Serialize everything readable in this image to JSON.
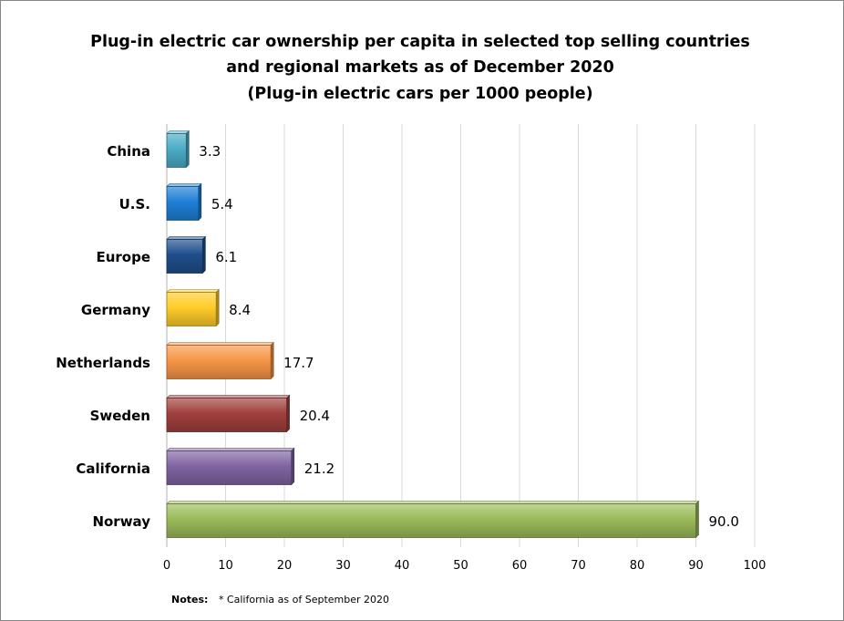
{
  "chart_data": {
    "type": "bar",
    "orientation": "horizontal",
    "title_lines": [
      "Plug-in electric car ownership per capita in selected top selling countries",
      "and regional markets as of December 2020",
      "(Plug-in electric cars per 1000 people)"
    ],
    "categories": [
      "China",
      "U.S.",
      "Europe",
      "Germany",
      "Netherlands",
      "Sweden",
      "California",
      "Norway"
    ],
    "values": [
      3.3,
      5.4,
      6.1,
      8.4,
      17.7,
      20.4,
      21.2,
      90.0
    ],
    "data_labels": [
      "3.3",
      "5.4",
      "6.1",
      "8.4",
      "17.7",
      "20.4",
      "21.2",
      "90.0"
    ],
    "colors": [
      "#4bacc6",
      "#1f7fd6",
      "#1f4e8c",
      "#ffcc29",
      "#f79646",
      "#a0403d",
      "#8064a2",
      "#9bbb59"
    ],
    "xlim": [
      0,
      100
    ],
    "x_ticks": [
      0,
      10,
      20,
      30,
      40,
      50,
      60,
      70,
      80,
      90,
      100
    ],
    "xlabel": "",
    "ylabel": "",
    "grid": "vertical",
    "legend": "none"
  },
  "notes": {
    "label": "Notes:",
    "text": "* California as of September 2020"
  }
}
